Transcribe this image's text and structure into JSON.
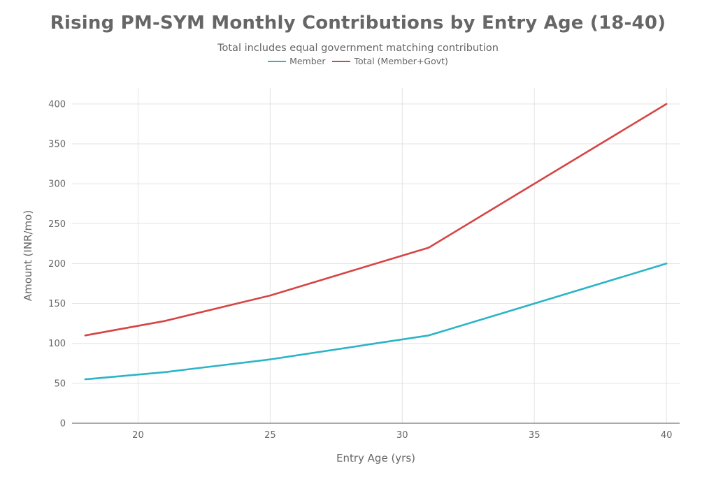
{
  "chart_data": {
    "type": "line",
    "title": "Rising PM-SYM Monthly Contributions by Entry Age (18-40)",
    "subtitle": "Total includes equal government matching contribution",
    "xlabel": "Entry Age (yrs)",
    "ylabel": "Amount (INR/mo)",
    "xlim": [
      17.5,
      40.5
    ],
    "ylim": [
      0,
      420
    ],
    "xticks": [
      20,
      25,
      30,
      35,
      40
    ],
    "yticks": [
      0,
      50,
      100,
      150,
      200,
      250,
      300,
      350,
      400
    ],
    "grid": true,
    "legend_position": "top-center",
    "series": [
      {
        "name": "Member",
        "color": "#2ab4c6",
        "points": [
          [
            18,
            55
          ],
          [
            21,
            64
          ],
          [
            25,
            80
          ],
          [
            29,
            100
          ],
          [
            31,
            110
          ],
          [
            35,
            150
          ],
          [
            40,
            200
          ]
        ]
      },
      {
        "name": "Total (Member+Govt)",
        "color": "#d64545",
        "points": [
          [
            18,
            110
          ],
          [
            21,
            128
          ],
          [
            25,
            160
          ],
          [
            29,
            200
          ],
          [
            31,
            220
          ],
          [
            35,
            300
          ],
          [
            40,
            400
          ]
        ]
      }
    ]
  }
}
